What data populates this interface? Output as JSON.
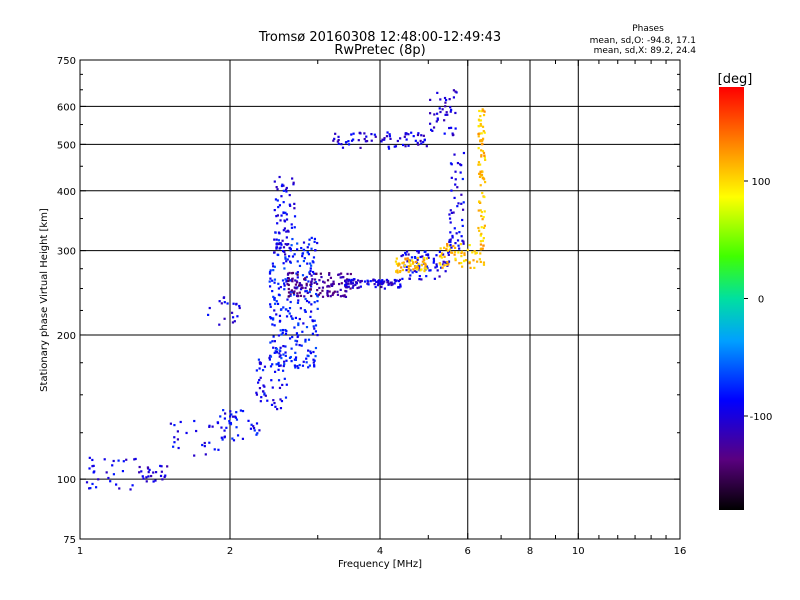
{
  "chart_data": {
    "type": "scatter",
    "title": "Tromsø 20160308 12:48:00-12:49:43",
    "subtitle": "RwPretec (8p)",
    "xlabel": "Frequency [MHz]",
    "ylabel": "Stationary phase Virtual Height [km]",
    "xscale": "log",
    "yscale": "log",
    "xlim": [
      1,
      16
    ],
    "ylim": [
      75,
      750
    ],
    "x_ticks": [
      1,
      2,
      4,
      6,
      8,
      10,
      16
    ],
    "x_tick_labels": [
      "1",
      "2",
      "4",
      "6",
      "8",
      "10",
      "16"
    ],
    "x_minor_ticks": [
      3,
      5,
      7,
      9,
      11,
      12,
      13,
      14,
      15
    ],
    "y_ticks": [
      75,
      100,
      200,
      300,
      400,
      500,
      600,
      750
    ],
    "y_tick_labels": [
      "75",
      "100",
      "200",
      "300",
      "400",
      "500",
      "600",
      "750"
    ],
    "grid": true,
    "stats": {
      "header": "Phases",
      "line_o": "mean, sd,O: -94.8, 17.1",
      "line_x": "mean, sd,X:  89.2, 24.4"
    },
    "colorbar": {
      "label": "[deg]",
      "range": [
        -180,
        180
      ],
      "ticks": [
        100,
        0,
        -100
      ],
      "tick_labels": [
        "100",
        "0",
        "-100"
      ]
    },
    "series": [
      {
        "name": "",
        "segments": [
          {
            "x_range": [
              1.03,
              1.3
            ],
            "y_range": [
              95,
              112
            ],
            "phase": -95,
            "count": 30
          },
          {
            "x_range": [
              1.3,
              1.5
            ],
            "y_range": [
              98,
              108
            ],
            "phase": -100,
            "count": 25
          },
          {
            "x_range": [
              1.5,
              1.9
            ],
            "y_range": [
              112,
              135
            ],
            "phase": -95,
            "count": 25
          },
          {
            "x_range": [
              1.9,
              2.3
            ],
            "y_range": [
              120,
              140
            ],
            "phase": -90,
            "count": 40
          },
          {
            "x_range": [
              2.25,
              2.6
            ],
            "y_range": [
              140,
              190
            ],
            "phase": -90,
            "count": 60
          },
          {
            "x_range": [
              2.4,
              3.0
            ],
            "y_range": [
              170,
              320
            ],
            "phase": -80,
            "count": 260
          },
          {
            "x_range": [
              2.45,
              2.7
            ],
            "y_range": [
              290,
              430
            ],
            "phase": -95,
            "count": 70
          },
          {
            "x_range": [
              2.6,
              3.5
            ],
            "y_range": [
              240,
              270
            ],
            "phase": -130,
            "count": 120
          },
          {
            "x_range": [
              3.4,
              4.4
            ],
            "y_range": [
              250,
              262
            ],
            "phase": -100,
            "count": 90
          },
          {
            "x_range": [
              4.4,
              5.5
            ],
            "y_range": [
              260,
              300
            ],
            "phase": -95,
            "count": 80
          },
          {
            "x_range": [
              4.3,
              5.0
            ],
            "y_range": [
              270,
              290
            ],
            "phase": 110,
            "count": 60
          },
          {
            "x_range": [
              5.2,
              6.5
            ],
            "y_range": [
              275,
              310
            ],
            "phase": 110,
            "count": 60
          },
          {
            "x_range": [
              5.5,
              5.9
            ],
            "y_range": [
              300,
              480
            ],
            "phase": -95,
            "count": 50
          },
          {
            "x_range": [
              6.3,
              6.5
            ],
            "y_range": [
              300,
              600
            ],
            "phase": 110,
            "count": 90
          },
          {
            "x_range": [
              3.2,
              5.0
            ],
            "y_range": [
              490,
              530
            ],
            "phase": -100,
            "count": 70
          },
          {
            "x_range": [
              5.0,
              5.7
            ],
            "y_range": [
              520,
              650
            ],
            "phase": -100,
            "count": 40
          },
          {
            "x_range": [
              1.8,
              2.1
            ],
            "y_range": [
              210,
              240
            ],
            "phase": -100,
            "count": 20
          }
        ]
      }
    ]
  }
}
